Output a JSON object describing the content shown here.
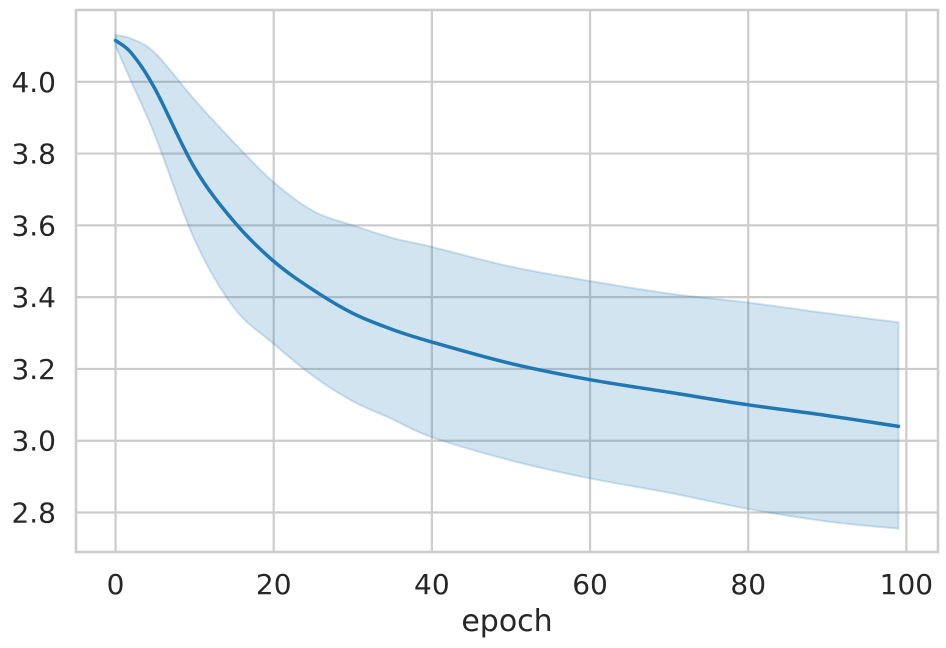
{
  "chart_data": {
    "type": "line",
    "title": "",
    "xlabel": "epoch",
    "ylabel": "",
    "xlim": [
      -5,
      104
    ],
    "ylim": [
      2.69,
      4.2
    ],
    "xticks": [
      0,
      20,
      40,
      60,
      80,
      100
    ],
    "yticks": [
      2.8,
      3.0,
      3.2,
      3.4,
      3.6,
      3.8,
      4.0
    ],
    "xtick_labels": [
      "0",
      "20",
      "40",
      "60",
      "80",
      "100"
    ],
    "ytick_labels": [
      "2.8",
      "3.0",
      "3.2",
      "3.4",
      "3.6",
      "3.8",
      "4.0"
    ],
    "grid": true,
    "legend": "none",
    "colors": {
      "line": "#1f77b4",
      "band": "#1f77b4",
      "grid": "#cccccc",
      "text": "#262626"
    },
    "series": [
      {
        "x": [
          0,
          2,
          5,
          10,
          15,
          20,
          25,
          30,
          35,
          40,
          50,
          60,
          70,
          80,
          90,
          99
        ],
        "y": [
          4.115,
          4.08,
          3.98,
          3.76,
          3.61,
          3.5,
          3.42,
          3.355,
          3.31,
          3.275,
          3.215,
          3.17,
          3.135,
          3.1,
          3.07,
          3.04
        ],
        "lower": [
          4.1,
          4.0,
          3.85,
          3.56,
          3.37,
          3.27,
          3.18,
          3.11,
          3.06,
          3.01,
          2.945,
          2.895,
          2.855,
          2.81,
          2.775,
          2.755
        ],
        "upper": [
          4.13,
          4.12,
          4.08,
          3.95,
          3.83,
          3.72,
          3.64,
          3.6,
          3.565,
          3.54,
          3.485,
          3.445,
          3.41,
          3.385,
          3.355,
          3.33
        ]
      }
    ]
  }
}
